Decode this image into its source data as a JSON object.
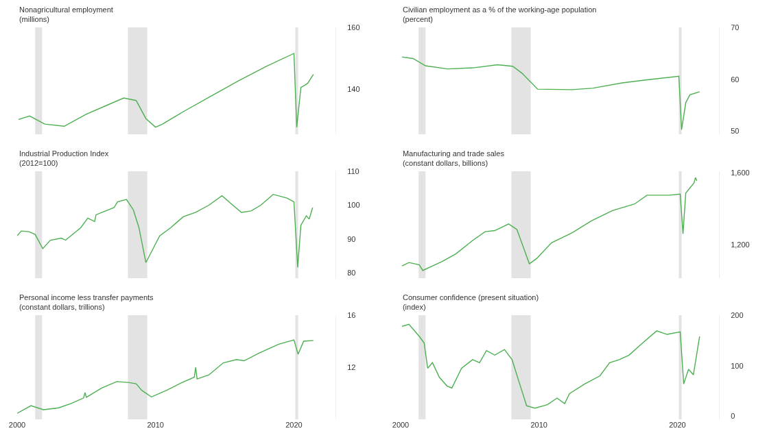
{
  "chart_data": [
    {
      "type": "line",
      "title": "Nonagricultural employment",
      "subtitle": "(millions)",
      "xlim": [
        2000,
        2023
      ],
      "xticks": [
        2000,
        2010,
        2020
      ],
      "ylim": [
        125.5,
        160
      ],
      "yticks": [
        140,
        160
      ],
      "tick_labels": "y",
      "bands": [
        {
          "axis": "x",
          "from": 2001.3,
          "to": 2001.8,
          "color": "#e3e3e3"
        },
        {
          "axis": "x",
          "from": 2008.0,
          "to": 2009.4,
          "color": "#e3e3e3"
        },
        {
          "axis": "x",
          "from": 2020.1,
          "to": 2020.3,
          "color": "#e3e3e3"
        }
      ],
      "series": [
        {
          "color": "#4caf50",
          "x": [
            2000.1,
            2000.9,
            2002.0,
            2003.4,
            2005.0,
            2006.5,
            2007.7,
            2008.6,
            2009.3,
            2010.0,
            2010.5,
            2012.0,
            2014.0,
            2016.0,
            2018.0,
            2020.0,
            2020.2,
            2020.5,
            2020.8,
            2021.0,
            2021.4
          ],
          "values": [
            130.3,
            131.4,
            128.8,
            128.1,
            132.0,
            134.9,
            137.2,
            136.4,
            130.6,
            127.8,
            128.8,
            132.8,
            137.8,
            142.8,
            147.4,
            151.6,
            127.8,
            140.6,
            141.4,
            142.0,
            144.8
          ]
        }
      ]
    },
    {
      "type": "line",
      "title": "Civilian employment as a % of the working-age population",
      "subtitle": "(percent)",
      "xlim": [
        2000,
        2023
      ],
      "xticks": [
        2000,
        2010,
        2020
      ],
      "ylim": [
        49.4,
        70
      ],
      "yticks": [
        50,
        60,
        70
      ],
      "tick_labels": "y",
      "bands": [
        {
          "axis": "x",
          "from": 2001.3,
          "to": 2001.8,
          "color": "#e3e3e3"
        },
        {
          "axis": "x",
          "from": 2008.0,
          "to": 2009.4,
          "color": "#e3e3e3"
        },
        {
          "axis": "x",
          "from": 2020.1,
          "to": 2020.3,
          "color": "#e3e3e3"
        }
      ],
      "series": [
        {
          "color": "#4caf50",
          "x": [
            2000.1,
            2000.9,
            2001.8,
            2003.4,
            2005.2,
            2007.0,
            2008.1,
            2008.8,
            2009.9,
            2012.4,
            2013.9,
            2016.0,
            2017.8,
            2020.1,
            2020.3,
            2020.6,
            2020.9,
            2021.6
          ],
          "values": [
            64.3,
            64.0,
            62.6,
            62.0,
            62.2,
            62.8,
            62.5,
            61.1,
            58.1,
            58.0,
            58.3,
            59.3,
            59.9,
            60.6,
            50.3,
            55.5,
            57.0,
            57.6
          ]
        }
      ]
    },
    {
      "type": "line",
      "title": "Industrial Production Index",
      "subtitle": "(2012=100)",
      "xlim": [
        2000,
        2023
      ],
      "xticks": [
        2000,
        2010,
        2020
      ],
      "ylim": [
        78.5,
        110
      ],
      "yticks": [
        80,
        90,
        100,
        110
      ],
      "tick_labels": "y",
      "bands": [
        {
          "axis": "x",
          "from": 2001.3,
          "to": 2001.8,
          "color": "#e3e3e3"
        },
        {
          "axis": "x",
          "from": 2008.0,
          "to": 2009.4,
          "color": "#e3e3e3"
        },
        {
          "axis": "x",
          "from": 2020.1,
          "to": 2020.3,
          "color": "#e3e3e3"
        }
      ],
      "series": [
        {
          "color": "#4caf50",
          "x": [
            2000.0,
            2000.3,
            2000.85,
            2001.3,
            2001.85,
            2002.4,
            2003.2,
            2003.5,
            2004.6,
            2005.1,
            2005.6,
            2005.7,
            2007.0,
            2007.25,
            2007.9,
            2008.4,
            2008.8,
            2009.3,
            2010.3,
            2011.1,
            2012.0,
            2012.9,
            2013.85,
            2014.8,
            2015.5,
            2016.2,
            2016.9,
            2017.6,
            2018.5,
            2019.5,
            2020.0,
            2020.27,
            2020.5,
            2020.9,
            2021.1,
            2021.35
          ],
          "values": [
            91.0,
            92.4,
            92.2,
            91.4,
            87.2,
            89.7,
            90.3,
            89.7,
            93.4,
            96.2,
            95.2,
            97.2,
            99.3,
            101.0,
            101.7,
            98.6,
            93.4,
            83.1,
            91.0,
            93.4,
            96.6,
            97.9,
            100.0,
            102.8,
            100.3,
            97.9,
            98.3,
            100.0,
            103.2,
            102.1,
            101.0,
            81.7,
            94.1,
            96.9,
            95.9,
            99.3
          ]
        }
      ]
    },
    {
      "type": "line",
      "title": "Manufacturing and trade sales",
      "subtitle": "(constant dollars, billions)",
      "xlim": [
        2000,
        2023
      ],
      "xticks": [
        2000,
        2010,
        2020
      ],
      "ylim": [
        1015,
        1610
      ],
      "yticks": [
        {
          "value": 1200,
          "label": "1,200"
        },
        {
          "value": 1600,
          "label": "1,600"
        }
      ],
      "tick_labels": "y",
      "bands": [
        {
          "axis": "x",
          "from": 2001.3,
          "to": 2001.8,
          "color": "#e3e3e3"
        },
        {
          "axis": "x",
          "from": 2008.0,
          "to": 2009.4,
          "color": "#e3e3e3"
        },
        {
          "axis": "x",
          "from": 2020.1,
          "to": 2020.3,
          "color": "#e3e3e3"
        }
      ],
      "series": [
        {
          "color": "#4caf50",
          "x": [
            2000.1,
            2000.6,
            2001.35,
            2001.6,
            2002.3,
            2003.0,
            2004.0,
            2005.2,
            2006.1,
            2006.8,
            2007.8,
            2008.4,
            2009.3,
            2009.85,
            2010.9,
            2012.4,
            2013.8,
            2015.3,
            2016.9,
            2017.8,
            2019.4,
            2020.2,
            2020.4,
            2020.6,
            2021.2,
            2021.3,
            2021.4
          ],
          "values": [
            1083,
            1102,
            1089,
            1058,
            1083,
            1108,
            1151,
            1225,
            1274,
            1280,
            1317,
            1286,
            1095,
            1126,
            1212,
            1268,
            1335,
            1391,
            1428,
            1477,
            1477,
            1483,
            1262,
            1489,
            1545,
            1575,
            1557
          ]
        }
      ]
    },
    {
      "type": "line",
      "title": "Personal income less transfer payments",
      "subtitle": "(constant dollars, trillions)",
      "xlim": [
        2000,
        2023
      ],
      "xticks": [
        2000,
        2010,
        2020
      ],
      "ylim": [
        8,
        16
      ],
      "yticks": [
        12,
        16
      ],
      "bands": [
        {
          "axis": "x",
          "from": 2001.3,
          "to": 2001.8,
          "color": "#e3e3e3"
        },
        {
          "axis": "x",
          "from": 2008.0,
          "to": 2009.4,
          "color": "#e3e3e3"
        },
        {
          "axis": "x",
          "from": 2020.1,
          "to": 2020.3,
          "color": "#e3e3e3"
        }
      ],
      "series": [
        {
          "color": "#4caf50",
          "x": [
            2000.0,
            2001.0,
            2001.9,
            2003.0,
            2003.9,
            2004.8,
            2004.9,
            2005.0,
            2006.1,
            2007.2,
            2008.1,
            2008.6,
            2009.0,
            2009.7,
            2010.8,
            2011.9,
            2012.8,
            2012.9,
            2013.0,
            2013.85,
            2014.9,
            2015.85,
            2016.4,
            2017.5,
            2018.9,
            2020.0,
            2020.3,
            2020.7,
            2021.4
          ],
          "values": [
            8.46,
            9.05,
            8.74,
            8.88,
            9.22,
            9.64,
            10.06,
            9.69,
            10.4,
            10.9,
            10.82,
            10.73,
            10.23,
            9.72,
            10.23,
            10.82,
            11.24,
            12.0,
            11.1,
            11.41,
            12.34,
            12.59,
            12.5,
            13.1,
            13.77,
            14.1,
            13.0,
            14.0,
            14.06
          ]
        }
      ]
    },
    {
      "type": "line",
      "title": "Consumer confidence (present situation)",
      "subtitle": "(index)",
      "xlim": [
        2000,
        2023
      ],
      "xticks": [
        2000,
        2010,
        2020
      ],
      "ylim": [
        -6,
        200
      ],
      "yticks": [
        0,
        100,
        200
      ],
      "bands": [
        {
          "axis": "x",
          "from": 2001.3,
          "to": 2001.8,
          "color": "#e3e3e3"
        },
        {
          "axis": "x",
          "from": 2008.0,
          "to": 2009.4,
          "color": "#e3e3e3"
        },
        {
          "axis": "x",
          "from": 2020.1,
          "to": 2020.3,
          "color": "#e3e3e3"
        }
      ],
      "series": [
        {
          "color": "#4caf50",
          "x": [
            2000.1,
            2000.6,
            2001.35,
            2001.7,
            2001.95,
            2002.3,
            2002.8,
            2003.35,
            2003.7,
            2004.4,
            2005.2,
            2005.7,
            2006.2,
            2006.8,
            2007.5,
            2008.05,
            2008.6,
            2009.1,
            2009.7,
            2010.6,
            2011.3,
            2011.85,
            2012.2,
            2013.3,
            2014.4,
            2015.1,
            2015.8,
            2016.5,
            2017.4,
            2018.5,
            2019.25,
            2020.2,
            2020.45,
            2020.8,
            2021.15,
            2021.6
          ],
          "values": [
            178,
            182,
            158,
            145,
            95,
            106,
            77,
            60,
            56,
            95,
            112,
            106,
            130,
            121,
            132,
            112,
            64,
            21,
            16,
            23,
            36,
            25,
            45,
            64,
            80,
            106,
            112,
            121,
            143,
            169,
            162,
            167,
            64,
            93,
            82,
            158
          ]
        }
      ]
    }
  ]
}
